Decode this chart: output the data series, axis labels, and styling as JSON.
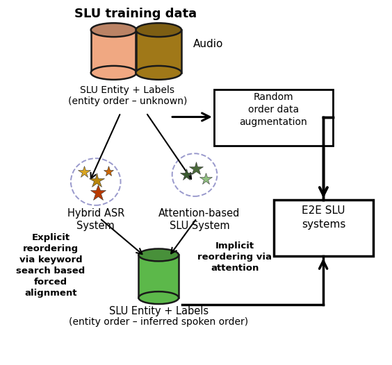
{
  "title": "SLU training data",
  "cylinder1_color": "#F0A882",
  "cylinder2_color": "#A07818",
  "cylinder3_color": "#5CB84A",
  "box1_text": "Random\norder data\naugmentation",
  "box2_text": "E2E SLU\nsystems",
  "label_top_line1": "SLU Entity + Labels",
  "label_top_line2": "(entity order – unknown)",
  "label_audio": "Audio",
  "label_hybrid": "Hybrid ASR\nSystem",
  "label_attention": "Attention-based\nSLU System",
  "label_bottom_line1": "SLU Entity + Labels",
  "label_bottom_line2": "(entity order – inferred spoken order)",
  "label_explicit": "Explicit\nreordering\nvia keyword\nsearch based\nforced\nalignment",
  "label_implicit": "Implicit\nreordering via\nattention",
  "bg_color": "#ffffff",
  "star_colors_hybrid": [
    "#DAA520",
    "#B8860B",
    "#CC5500",
    "#8B4513"
  ],
  "star_colors_attn": [
    "#4A6741",
    "#6B8C42",
    "#90C070"
  ],
  "arc_color": "#9999CC"
}
